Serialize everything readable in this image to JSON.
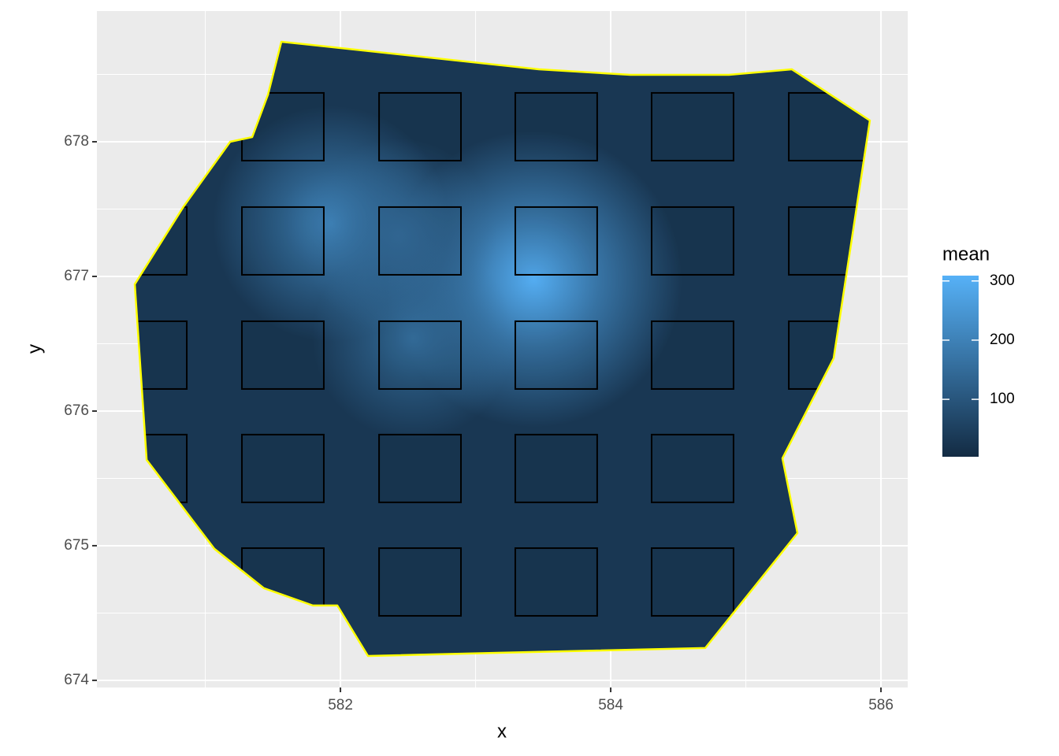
{
  "chart_data": {
    "type": "raster-map",
    "x_label": "x",
    "y_label": "y",
    "legend_title": "mean",
    "xlim": [
      580.198,
      586.198
    ],
    "xticks": [
      582,
      584,
      586
    ],
    "ylim": [
      673.947,
      678.971
    ],
    "yticks": [
      674,
      675,
      676,
      677,
      678
    ],
    "grid": true,
    "clim": [
      3,
      309
    ],
    "cticks": [
      100,
      200,
      300
    ],
    "low_color": "#132B43",
    "high_color": "#56B1F7",
    "boundary_color": "#FFFF00",
    "background_mean": 30,
    "hotspots": {
      "x": [
        583.43,
        581.93,
        582.54,
        582.43
      ],
      "y": [
        676.98,
        677.39,
        676.54,
        677.3
      ],
      "value": [
        300,
        210,
        160,
        150
      ]
    },
    "boundary": {
      "x": [
        581.563,
        583.469,
        584.146,
        584.875,
        585.341,
        585.918,
        585.65,
        585.271,
        585.382,
        584.7,
        583.19,
        582.204,
        581.977,
        581.796,
        581.434,
        581.067,
        580.566,
        580.478,
        580.84,
        581.184,
        581.347,
        581.464
      ],
      "y": [
        678.743,
        678.538,
        678.497,
        678.497,
        678.538,
        678.158,
        676.392,
        675.649,
        675.094,
        674.24,
        674.205,
        674.181,
        674.556,
        674.556,
        674.684,
        674.977,
        675.637,
        676.942,
        677.52,
        678.0,
        678.035,
        678.351
      ]
    },
    "plots": {
      "xmin": [
        581.271,
        582.286,
        583.294,
        584.303,
        585.318,
        580.257,
        581.271,
        582.286,
        583.294,
        584.303,
        585.318,
        580.257,
        581.271,
        582.286,
        583.294,
        584.303,
        585.318,
        580.257,
        581.271,
        582.286,
        583.294,
        584.303,
        581.271,
        582.286,
        583.294,
        584.303
      ],
      "xmax": [
        581.877,
        582.892,
        583.9,
        584.909,
        585.924,
        580.863,
        581.877,
        582.892,
        583.9,
        584.909,
        585.924,
        580.863,
        581.877,
        582.892,
        583.9,
        584.909,
        585.924,
        580.863,
        581.877,
        582.892,
        583.9,
        584.909,
        581.877,
        582.892,
        583.9,
        584.909
      ],
      "ymin": [
        677.86,
        677.86,
        677.86,
        677.86,
        677.86,
        677.012,
        677.012,
        677.012,
        677.012,
        677.012,
        677.012,
        676.164,
        676.164,
        676.164,
        676.164,
        676.164,
        676.164,
        675.322,
        675.322,
        675.322,
        675.322,
        675.322,
        674.479,
        674.479,
        674.479,
        674.479
      ],
      "ymax": [
        678.363,
        678.363,
        678.363,
        678.363,
        678.363,
        677.515,
        677.515,
        677.515,
        677.515,
        677.515,
        677.515,
        676.667,
        676.667,
        676.667,
        676.667,
        676.667,
        676.667,
        675.825,
        675.825,
        675.825,
        675.825,
        675.825,
        674.982,
        674.982,
        674.982,
        674.982
      ]
    }
  }
}
